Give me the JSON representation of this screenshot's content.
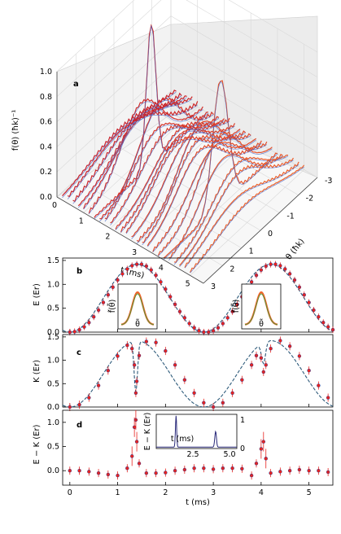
{
  "panel_a": {
    "letter": "a",
    "zlabel": "f(θ) (ħk)⁻¹",
    "xlabel": "t (ms)",
    "ylabel": "θ (ħk)",
    "z_ticks": [
      "0.0",
      "0.2",
      "0.4",
      "0.6",
      "0.8",
      "1.0"
    ],
    "t_ticks": [
      "0",
      "1",
      "2",
      "3",
      "4",
      "5"
    ],
    "theta_ticks": [
      "-3",
      "-2",
      "-1",
      "0",
      "1",
      "2",
      "3"
    ]
  },
  "panel_b": {
    "letter": "b",
    "ylabel": "E (Er)",
    "y_ticks": [
      "0.0",
      "0.5",
      "1.0",
      "1.5"
    ],
    "inset_ylabel": "f̃(θ̃)",
    "inset_xlabel": "θ̃"
  },
  "panel_c": {
    "letter": "c",
    "ylabel": "K (Er)",
    "y_ticks": [
      "0.0",
      "0.5",
      "1.0",
      "1.5"
    ]
  },
  "panel_d": {
    "letter": "d",
    "ylabel": "E − K (Er)",
    "y_ticks": [
      "0.0",
      "0.5",
      "1.0"
    ],
    "x_ticks": [
      "0",
      "1",
      "2",
      "3",
      "4",
      "5"
    ],
    "xlabel": "t (ms)",
    "inset_ylabel": "E − K (Er)",
    "inset_xlabel": "t (ms)",
    "inset_x_ticks": [
      "2.5",
      "5.0"
    ],
    "inset_y_ticks": [
      "0",
      "1"
    ]
  },
  "colors": {
    "data_red": "#e8231f",
    "data_blue": "#1f3b9a",
    "fit_dashed": "#2d5a7a",
    "theory_blue": "#4466cc",
    "curve_red": "#c9202a",
    "curve_orange": "#f0642a",
    "inset_curve": "#2a2a7a"
  },
  "chart_data": [
    {
      "type": "line",
      "panel": "a",
      "description_kind": "3d waterfall of momentum distributions",
      "t_values": [
        0.2,
        0.4,
        0.6,
        0.8,
        1.0,
        1.2,
        1.4,
        1.6,
        1.8,
        2.0,
        2.2,
        2.4,
        2.6,
        2.8,
        3.0,
        3.2,
        3.4,
        3.6,
        3.8,
        4.0,
        4.2,
        4.4,
        4.6,
        4.8,
        5.0
      ],
      "peak_heights": [
        0.13,
        0.17,
        0.22,
        0.28,
        0.32,
        0.5,
        1.12,
        0.5,
        0.37,
        0.35,
        0.33,
        0.35,
        0.36,
        0.4,
        0.48,
        0.43,
        0.4,
        0.39,
        0.5,
        1.0,
        0.42,
        0.34,
        0.32,
        0.2,
        0.15
      ],
      "zlim": [
        0.0,
        1.0
      ],
      "tlim": [
        0,
        5.5
      ],
      "thetalim": [
        -3,
        3
      ]
    },
    {
      "type": "scatter",
      "panel": "b",
      "x": [
        0.0,
        0.1,
        0.2,
        0.3,
        0.4,
        0.5,
        0.6,
        0.7,
        0.8,
        0.9,
        1.0,
        1.1,
        1.2,
        1.3,
        1.4,
        1.5,
        1.6,
        1.7,
        1.8,
        1.9,
        2.0,
        2.1,
        2.2,
        2.3,
        2.4,
        2.5,
        2.6,
        2.7,
        2.8,
        2.9,
        3.0,
        3.1,
        3.2,
        3.3,
        3.4,
        3.5,
        3.6,
        3.7,
        3.8,
        3.9,
        4.0,
        4.1,
        4.2,
        4.3,
        4.4,
        4.5,
        4.6,
        4.7,
        4.8,
        4.9,
        5.0,
        5.1,
        5.2,
        5.3,
        5.4,
        5.5
      ],
      "series": [
        {
          "name": "",
          "values": [
            0.0,
            0.01,
            0.05,
            0.11,
            0.2,
            0.32,
            0.46,
            0.62,
            0.78,
            0.94,
            1.09,
            1.22,
            1.32,
            1.39,
            1.42,
            1.42,
            1.38,
            1.3,
            1.19,
            1.05,
            0.9,
            0.74,
            0.58,
            0.43,
            0.3,
            0.18,
            0.09,
            0.03,
            0.0,
            0.0,
            0.03,
            0.09,
            0.18,
            0.3,
            0.43,
            0.58,
            0.74,
            0.9,
            1.05,
            1.19,
            1.3,
            1.38,
            1.42,
            1.42,
            1.39,
            1.32,
            1.22,
            1.09,
            0.94,
            0.78,
            0.62,
            0.46,
            0.32,
            0.2,
            0.11,
            0.05
          ]
        }
      ],
      "xlim": [
        -0.15,
        5.5
      ],
      "ylim": [
        0.0,
        1.55
      ],
      "insets": 2
    },
    {
      "type": "scatter",
      "panel": "c",
      "x": [
        0.0,
        0.2,
        0.4,
        0.6,
        0.8,
        1.0,
        1.2,
        1.3,
        1.35,
        1.38,
        1.4,
        1.45,
        1.6,
        1.8,
        2.0,
        2.2,
        2.4,
        2.6,
        2.8,
        3.0,
        3.2,
        3.4,
        3.6,
        3.8,
        3.9,
        4.0,
        4.05,
        4.1,
        4.2,
        4.4,
        4.6,
        4.8,
        5.0,
        5.2,
        5.4
      ],
      "series": [
        {
          "name": "",
          "values": [
            0.0,
            0.05,
            0.2,
            0.46,
            0.78,
            1.09,
            1.32,
            1.25,
            0.9,
            0.3,
            0.55,
            1.1,
            1.4,
            1.38,
            1.2,
            0.9,
            0.58,
            0.3,
            0.09,
            0.0,
            0.09,
            0.3,
            0.58,
            0.9,
            1.1,
            1.05,
            0.75,
            0.9,
            1.25,
            1.42,
            1.3,
            1.09,
            0.78,
            0.46,
            0.2
          ]
        }
      ],
      "xlim": [
        -0.15,
        5.5
      ],
      "ylim": [
        0.0,
        1.55
      ]
    },
    {
      "type": "scatter",
      "panel": "d",
      "x": [
        0.0,
        0.2,
        0.4,
        0.6,
        0.8,
        1.0,
        1.2,
        1.3,
        1.35,
        1.38,
        1.4,
        1.45,
        1.6,
        1.8,
        2.0,
        2.2,
        2.4,
        2.6,
        2.8,
        3.0,
        3.2,
        3.4,
        3.6,
        3.8,
        3.9,
        4.0,
        4.05,
        4.1,
        4.2,
        4.4,
        4.6,
        4.8,
        5.0,
        5.2,
        5.4
      ],
      "series": [
        {
          "name": "",
          "values": [
            0.0,
            0.0,
            -0.02,
            -0.05,
            -0.08,
            -0.1,
            0.05,
            0.3,
            0.9,
            1.05,
            0.6,
            0.15,
            -0.05,
            -0.05,
            -0.04,
            0.0,
            0.02,
            0.05,
            0.05,
            0.03,
            0.05,
            0.05,
            0.04,
            -0.1,
            0.15,
            0.45,
            0.6,
            0.25,
            -0.05,
            -0.02,
            0.0,
            0.02,
            0.0,
            0.0,
            -0.03
          ]
        }
      ],
      "xlim": [
        -0.15,
        5.5
      ],
      "ylim": [
        -0.3,
        1.25
      ],
      "inset": {
        "type": "line",
        "xlim": [
          0,
          5.5
        ],
        "ylim": [
          0,
          1.2
        ],
        "peaks_at": [
          1.35,
          4.05
        ]
      }
    }
  ]
}
